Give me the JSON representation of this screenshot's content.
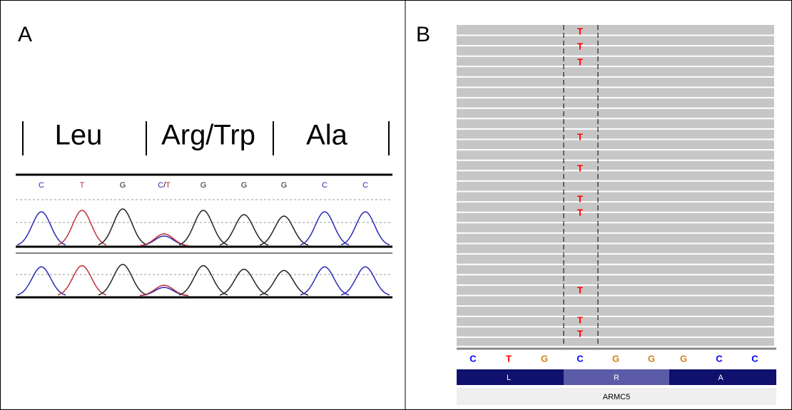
{
  "panel_a": {
    "label": "A",
    "codons": [
      "Leu",
      "Arg/Trp",
      "Ala"
    ],
    "bases": [
      "C",
      "T",
      "G",
      "C/T",
      "G",
      "G",
      "G",
      "C",
      "C"
    ]
  },
  "panel_b": {
    "label": "B",
    "reads": [
      "T",
      "T",
      "T",
      "T",
      "T",
      "T",
      "T",
      "T",
      "T",
      "T"
    ],
    "bases": [
      "C",
      "T",
      "G",
      "C",
      "G",
      "G",
      "G",
      "C",
      "C"
    ],
    "amino_acids": [
      "L",
      "R",
      "A"
    ],
    "gene": "ARMC5"
  }
}
